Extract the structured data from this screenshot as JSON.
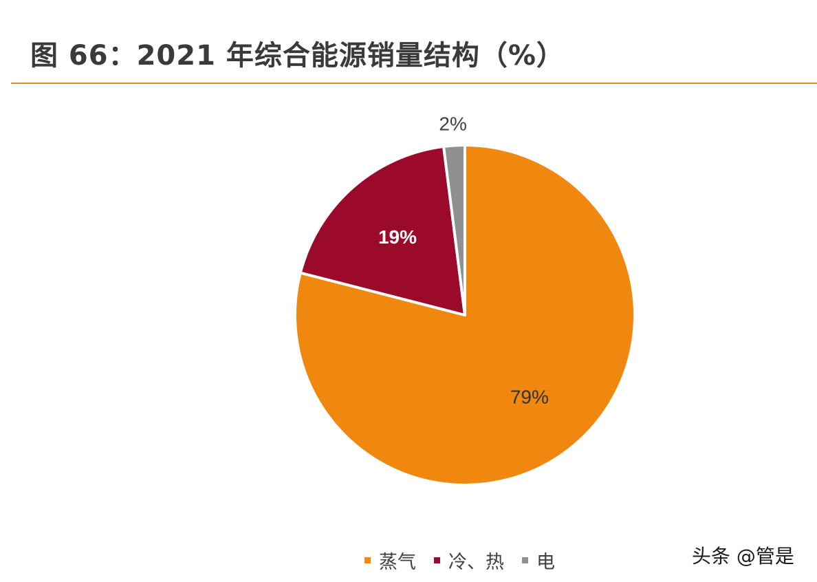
{
  "title": "图 66：2021 年综合能源销量结构（%）",
  "watermark": "头条 @管是",
  "chart_data": {
    "type": "pie",
    "title": "图 66：2021 年综合能源销量结构（%）",
    "series": [
      {
        "name": "蒸气",
        "value": 79,
        "label": "79%",
        "color": "#f0870f",
        "label_color": "#333333",
        "label_weight": "normal"
      },
      {
        "name": "冷、热",
        "value": 19,
        "label": "19%",
        "color": "#9b0a2a",
        "label_color": "#ffffff",
        "label_weight": "bold"
      },
      {
        "name": "电",
        "value": 2,
        "label": "2%",
        "color": "#909090",
        "label_color": "#404040",
        "label_weight": "normal"
      }
    ],
    "legend_position": "bottom",
    "start_angle_deg": 0,
    "direction": "clockwise"
  }
}
